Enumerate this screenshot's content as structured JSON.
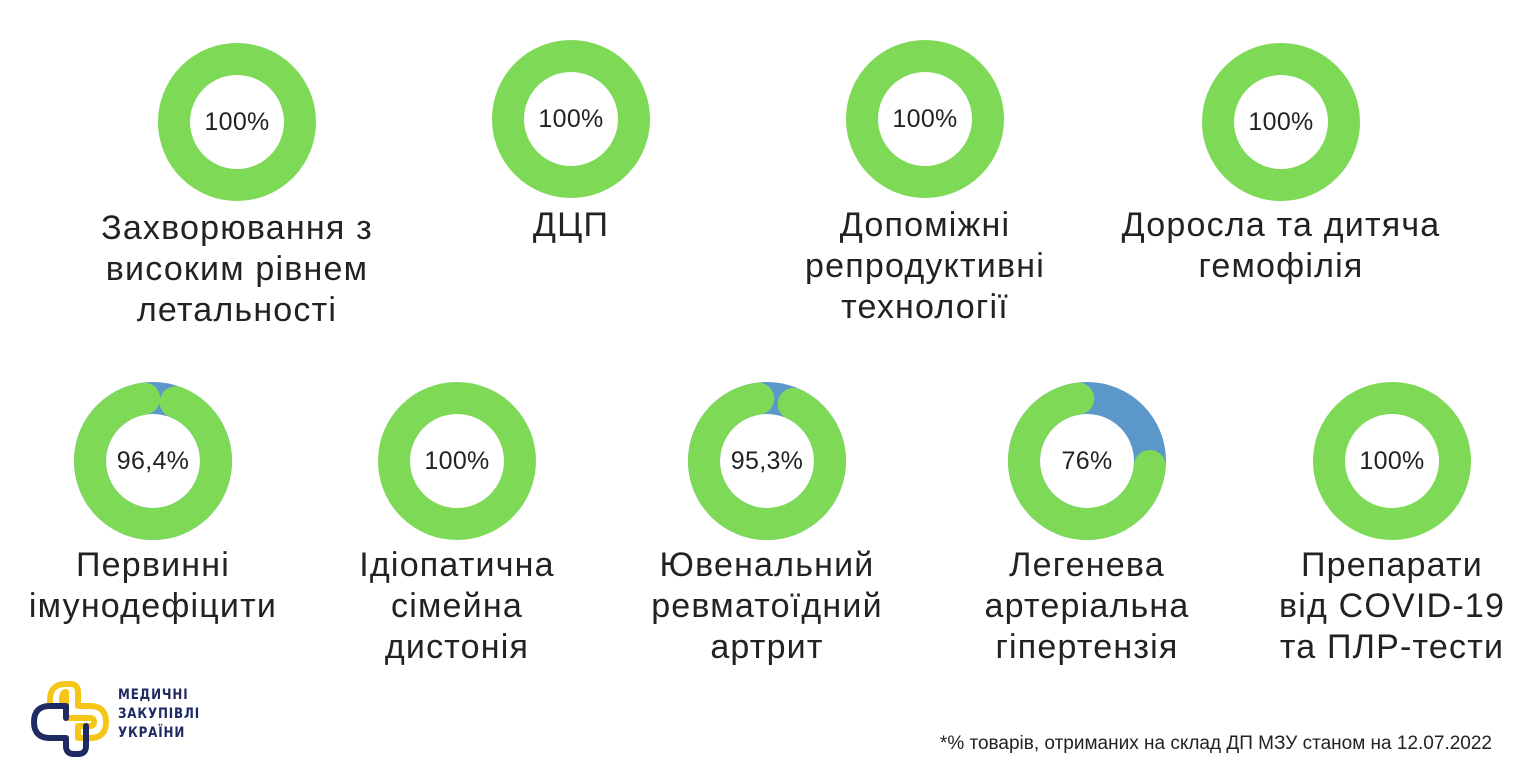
{
  "chart_data": {
    "type": "donut",
    "colors": {
      "share": "#7ed957",
      "remainder": "#5b97c9"
    },
    "items": [
      {
        "label": [
          "Захворювання з",
          "високим рівнем",
          "летальності"
        ],
        "value": 100,
        "value_text": "100%"
      },
      {
        "label": [
          "ДЦП"
        ],
        "value": 100,
        "value_text": "100%"
      },
      {
        "label": [
          "Допоміжні",
          "репродуктивні",
          "технології"
        ],
        "value": 100,
        "value_text": "100%"
      },
      {
        "label": [
          "Доросла та дитяча",
          "гемофілія"
        ],
        "value": 100,
        "value_text": "100%"
      },
      {
        "label": [
          "Первинні",
          "імунодефіцити"
        ],
        "value": 96.4,
        "value_text": "96,4%"
      },
      {
        "label": [
          "Ідіопатична",
          "сімейна",
          "дистонія"
        ],
        "value": 100,
        "value_text": "100%"
      },
      {
        "label": [
          "Ювенальний",
          "ревматоїдний",
          "артрит"
        ],
        "value": 95.3,
        "value_text": "95,3%"
      },
      {
        "label": [
          "Легенева",
          "артеріальна",
          "гіпертензія"
        ],
        "value": 76,
        "value_text": "76%"
      },
      {
        "label": [
          "Препарати",
          "від COVID-19",
          "та ПЛР-тести"
        ],
        "value": 100,
        "value_text": "100%"
      }
    ]
  },
  "footnote": "*% товарів, отриманих на склад ДП МЗУ станом на 12.07.2022",
  "logo": {
    "lines": [
      "МЕДИЧНІ",
      "ЗАКУПІВЛІ",
      "УКРАЇНИ"
    ],
    "colors": {
      "yellow": "#f5c518",
      "navy": "#1f2a63"
    }
  }
}
